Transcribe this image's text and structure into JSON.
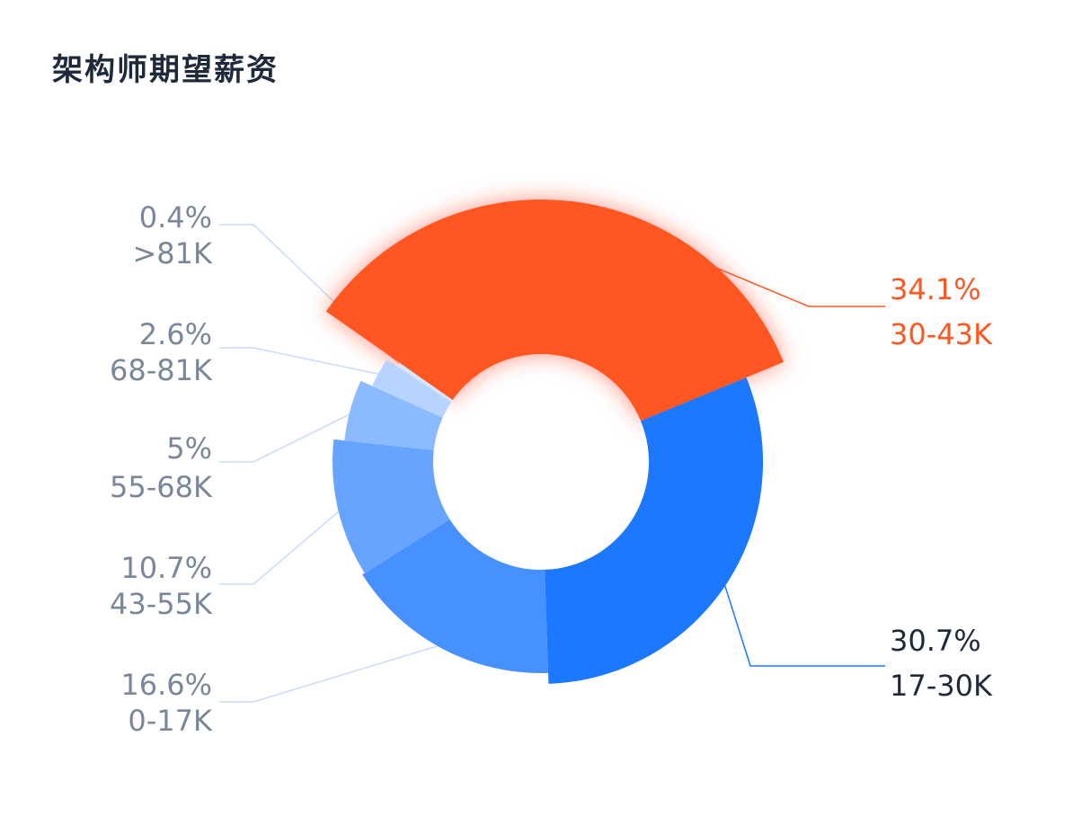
{
  "chart_data": {
    "type": "pie",
    "title": "架构师期望薪资",
    "categories": [
      "30-43K",
      "17-30K",
      "0-17K",
      "43-55K",
      "55-68K",
      "68-81K",
      ">81K"
    ],
    "values": [
      34.1,
      30.7,
      16.6,
      10.7,
      5,
      2.6,
      0.4
    ],
    "percent_labels": [
      "34.1%",
      "30.7%",
      "16.6%",
      "10.7%",
      "5%",
      "2.6%",
      "0.4%"
    ],
    "colors": [
      "#ff5722",
      "#1b78ff",
      "#4690ff",
      "#66a4ff",
      "#8cbaff",
      "#b7d3ff",
      "#d7e6ff"
    ],
    "label_colors": [
      "#ff5722",
      "#1e2a3b",
      "#7a8799",
      "#7a8799",
      "#7a8799",
      "#7a8799",
      "#7a8799"
    ],
    "style": "rose-donut",
    "legend": "none"
  }
}
